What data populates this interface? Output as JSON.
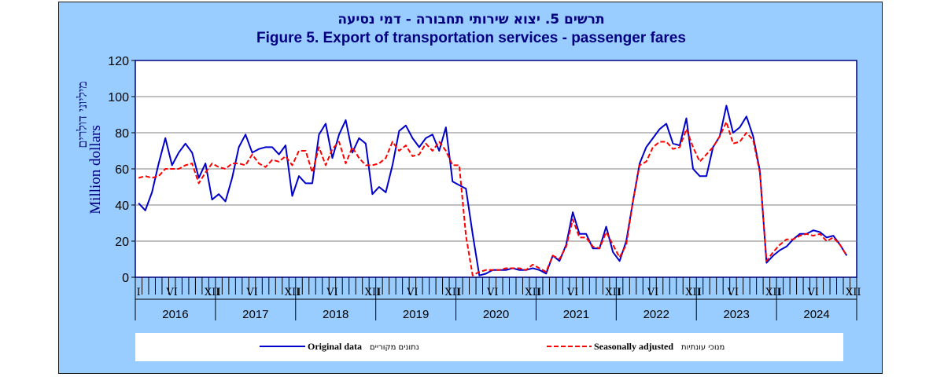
{
  "chart_data": {
    "type": "line",
    "title_he": "תרשים 5. יצוא שירותי תחבורה - דמי נסיעה",
    "title": "Figure 5. Export of transportation services - passenger fares",
    "ylabel": "Million dollars",
    "ylabel_he": "מיליוני דולרים",
    "ylim": [
      0,
      120
    ],
    "yticks": [
      0,
      20,
      40,
      60,
      80,
      100,
      120
    ],
    "grid": true,
    "legend_position": "bottom",
    "years": [
      "2016",
      "2017",
      "2018",
      "2019",
      "2020",
      "2021",
      "2022",
      "2023",
      "2024"
    ],
    "month_marks": [
      {
        "m": 1,
        "label": "I"
      },
      {
        "m": 6,
        "label": "VI"
      },
      {
        "m": 12,
        "label": "XII"
      }
    ],
    "series": [
      {
        "name": "Original data",
        "name_he": "נתונים מקוריים",
        "color": "#0000cc",
        "dash": "solid",
        "values": [
          41,
          37,
          47,
          63,
          77,
          62,
          69,
          74,
          69,
          55,
          63,
          43,
          46,
          42,
          55,
          72,
          79,
          69,
          71,
          72,
          72,
          68,
          73,
          45,
          56,
          52,
          52,
          79,
          85,
          66,
          79,
          87,
          69,
          77,
          74,
          46,
          50,
          47,
          62,
          81,
          84,
          77,
          72,
          77,
          79,
          70,
          83,
          53,
          51,
          49,
          24,
          1,
          2,
          4,
          4,
          4,
          5,
          4,
          4,
          5,
          4,
          2,
          12,
          9,
          18,
          36,
          24,
          24,
          16,
          16,
          28,
          14,
          9,
          20,
          42,
          63,
          72,
          77,
          82,
          85,
          74,
          73,
          88,
          60,
          56,
          56,
          72,
          78,
          95,
          80,
          83,
          89,
          78,
          59,
          8,
          12,
          15,
          17,
          21,
          24,
          24,
          26,
          25,
          22,
          23,
          18,
          12
        ]
      },
      {
        "name": "Seasonally adjusted",
        "name_he": "מנוכי עונתיות",
        "color": "#ff0000",
        "dash": "dashed",
        "values": [
          55,
          56,
          55,
          56,
          60,
          60,
          60,
          62,
          63,
          52,
          58,
          63,
          61,
          60,
          63,
          63,
          62,
          68,
          63,
          61,
          65,
          64,
          67,
          62,
          70,
          70,
          58,
          72,
          62,
          71,
          75,
          63,
          72,
          66,
          62,
          62,
          63,
          66,
          75,
          70,
          73,
          67,
          68,
          74,
          70,
          75,
          70,
          62,
          62,
          23,
          1,
          3,
          4,
          4,
          4,
          5,
          5,
          5,
          4,
          7,
          5,
          3,
          12,
          10,
          17,
          32,
          22,
          22,
          17,
          16,
          25,
          18,
          11,
          18,
          42,
          62,
          64,
          72,
          75,
          75,
          71,
          72,
          82,
          72,
          64,
          68,
          72,
          78,
          86,
          74,
          75,
          80,
          76,
          58,
          9,
          14,
          18,
          21,
          21,
          23,
          24,
          23,
          24,
          20,
          22,
          18,
          12
        ]
      }
    ]
  }
}
